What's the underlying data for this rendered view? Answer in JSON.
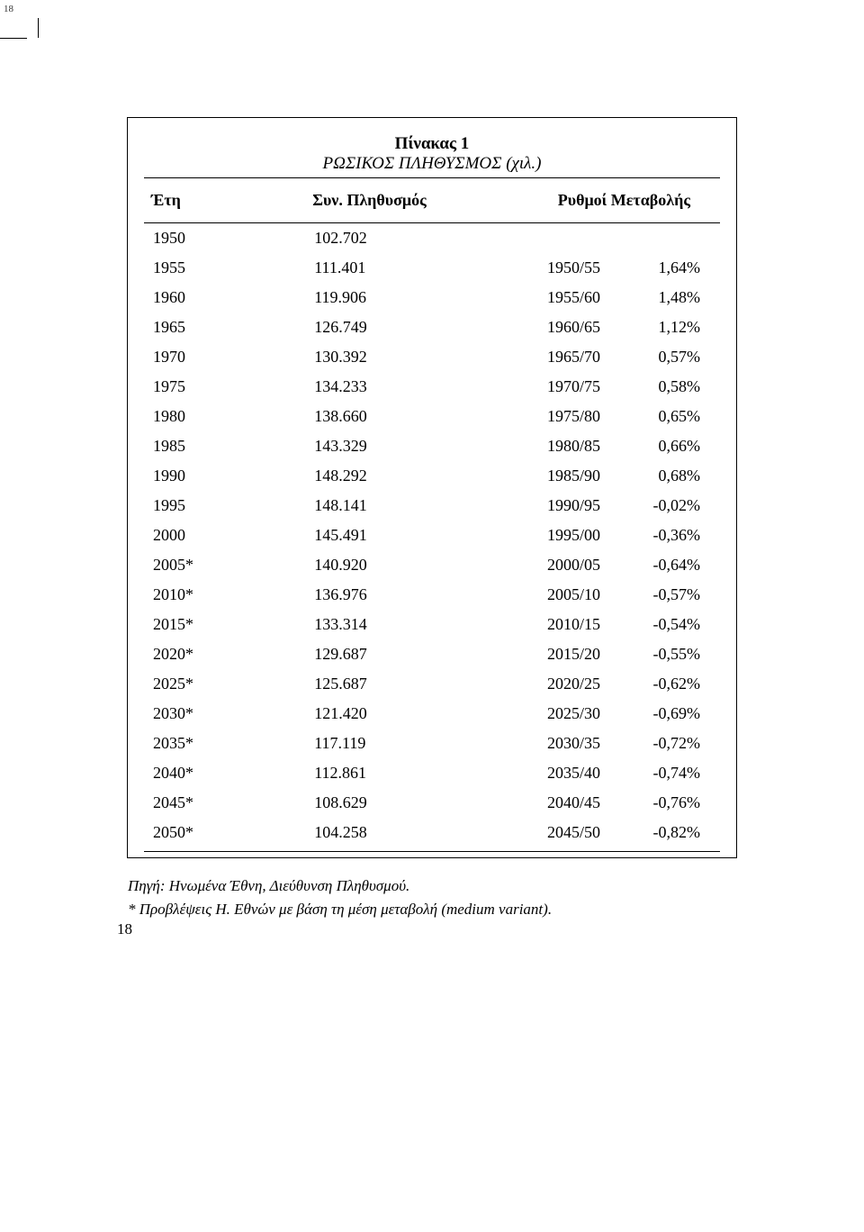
{
  "page_number_top": "18",
  "page_number_bottom": "18",
  "table": {
    "title_line1": "Πίνακας 1",
    "title_line2": "ΡΩΣΙΚΟΣ ΠΛΗΘΥΣΜΟΣ (χιλ.)",
    "columns": {
      "years": "Έτη",
      "population": "Συν. Πληθυσμός",
      "rates_header": "Ρυθμοί Μεταβολής"
    },
    "rows": [
      {
        "year": "1950",
        "pop": "102.702",
        "period": "",
        "rate": ""
      },
      {
        "year": "1955",
        "pop": "111.401",
        "period": "1950/55",
        "rate": "1,64%"
      },
      {
        "year": "1960",
        "pop": "119.906",
        "period": "1955/60",
        "rate": "1,48%"
      },
      {
        "year": "1965",
        "pop": "126.749",
        "period": "1960/65",
        "rate": "1,12%"
      },
      {
        "year": "1970",
        "pop": "130.392",
        "period": "1965/70",
        "rate": "0,57%"
      },
      {
        "year": "1975",
        "pop": "134.233",
        "period": "1970/75",
        "rate": "0,58%"
      },
      {
        "year": "1980",
        "pop": "138.660",
        "period": "1975/80",
        "rate": "0,65%"
      },
      {
        "year": "1985",
        "pop": "143.329",
        "period": "1980/85",
        "rate": "0,66%"
      },
      {
        "year": "1990",
        "pop": "148.292",
        "period": "1985/90",
        "rate": "0,68%"
      },
      {
        "year": "1995",
        "pop": "148.141",
        "period": "1990/95",
        "rate": "-0,02%"
      },
      {
        "year": "2000",
        "pop": "145.491",
        "period": "1995/00",
        "rate": "-0,36%"
      },
      {
        "year": "2005*",
        "pop": "140.920",
        "period": "2000/05",
        "rate": "-0,64%"
      },
      {
        "year": "2010*",
        "pop": "136.976",
        "period": "2005/10",
        "rate": "-0,57%"
      },
      {
        "year": "2015*",
        "pop": "133.314",
        "period": "2010/15",
        "rate": "-0,54%"
      },
      {
        "year": "2020*",
        "pop": "129.687",
        "period": "2015/20",
        "rate": "-0,55%"
      },
      {
        "year": "2025*",
        "pop": "125.687",
        "period": "2020/25",
        "rate": "-0,62%"
      },
      {
        "year": "2030*",
        "pop": "121.420",
        "period": "2025/30",
        "rate": "-0,69%"
      },
      {
        "year": "2035*",
        "pop": "117.119",
        "period": "2030/35",
        "rate": "-0,72%"
      },
      {
        "year": "2040*",
        "pop": "112.861",
        "period": "2035/40",
        "rate": "-0,74%"
      },
      {
        "year": "2045*",
        "pop": "108.629",
        "period": "2040/45",
        "rate": "-0,76%"
      },
      {
        "year": "2050*",
        "pop": "104.258",
        "period": "2045/50",
        "rate": "-0,82%"
      }
    ]
  },
  "source": {
    "line1": "Πηγή: Ηνωμένα Έθνη, Διεύθυνση Πληθυσμού.",
    "line2": "*  Προβλέψεις Η. Εθνών με βάση τη μέση μεταβολή (medium variant)."
  }
}
